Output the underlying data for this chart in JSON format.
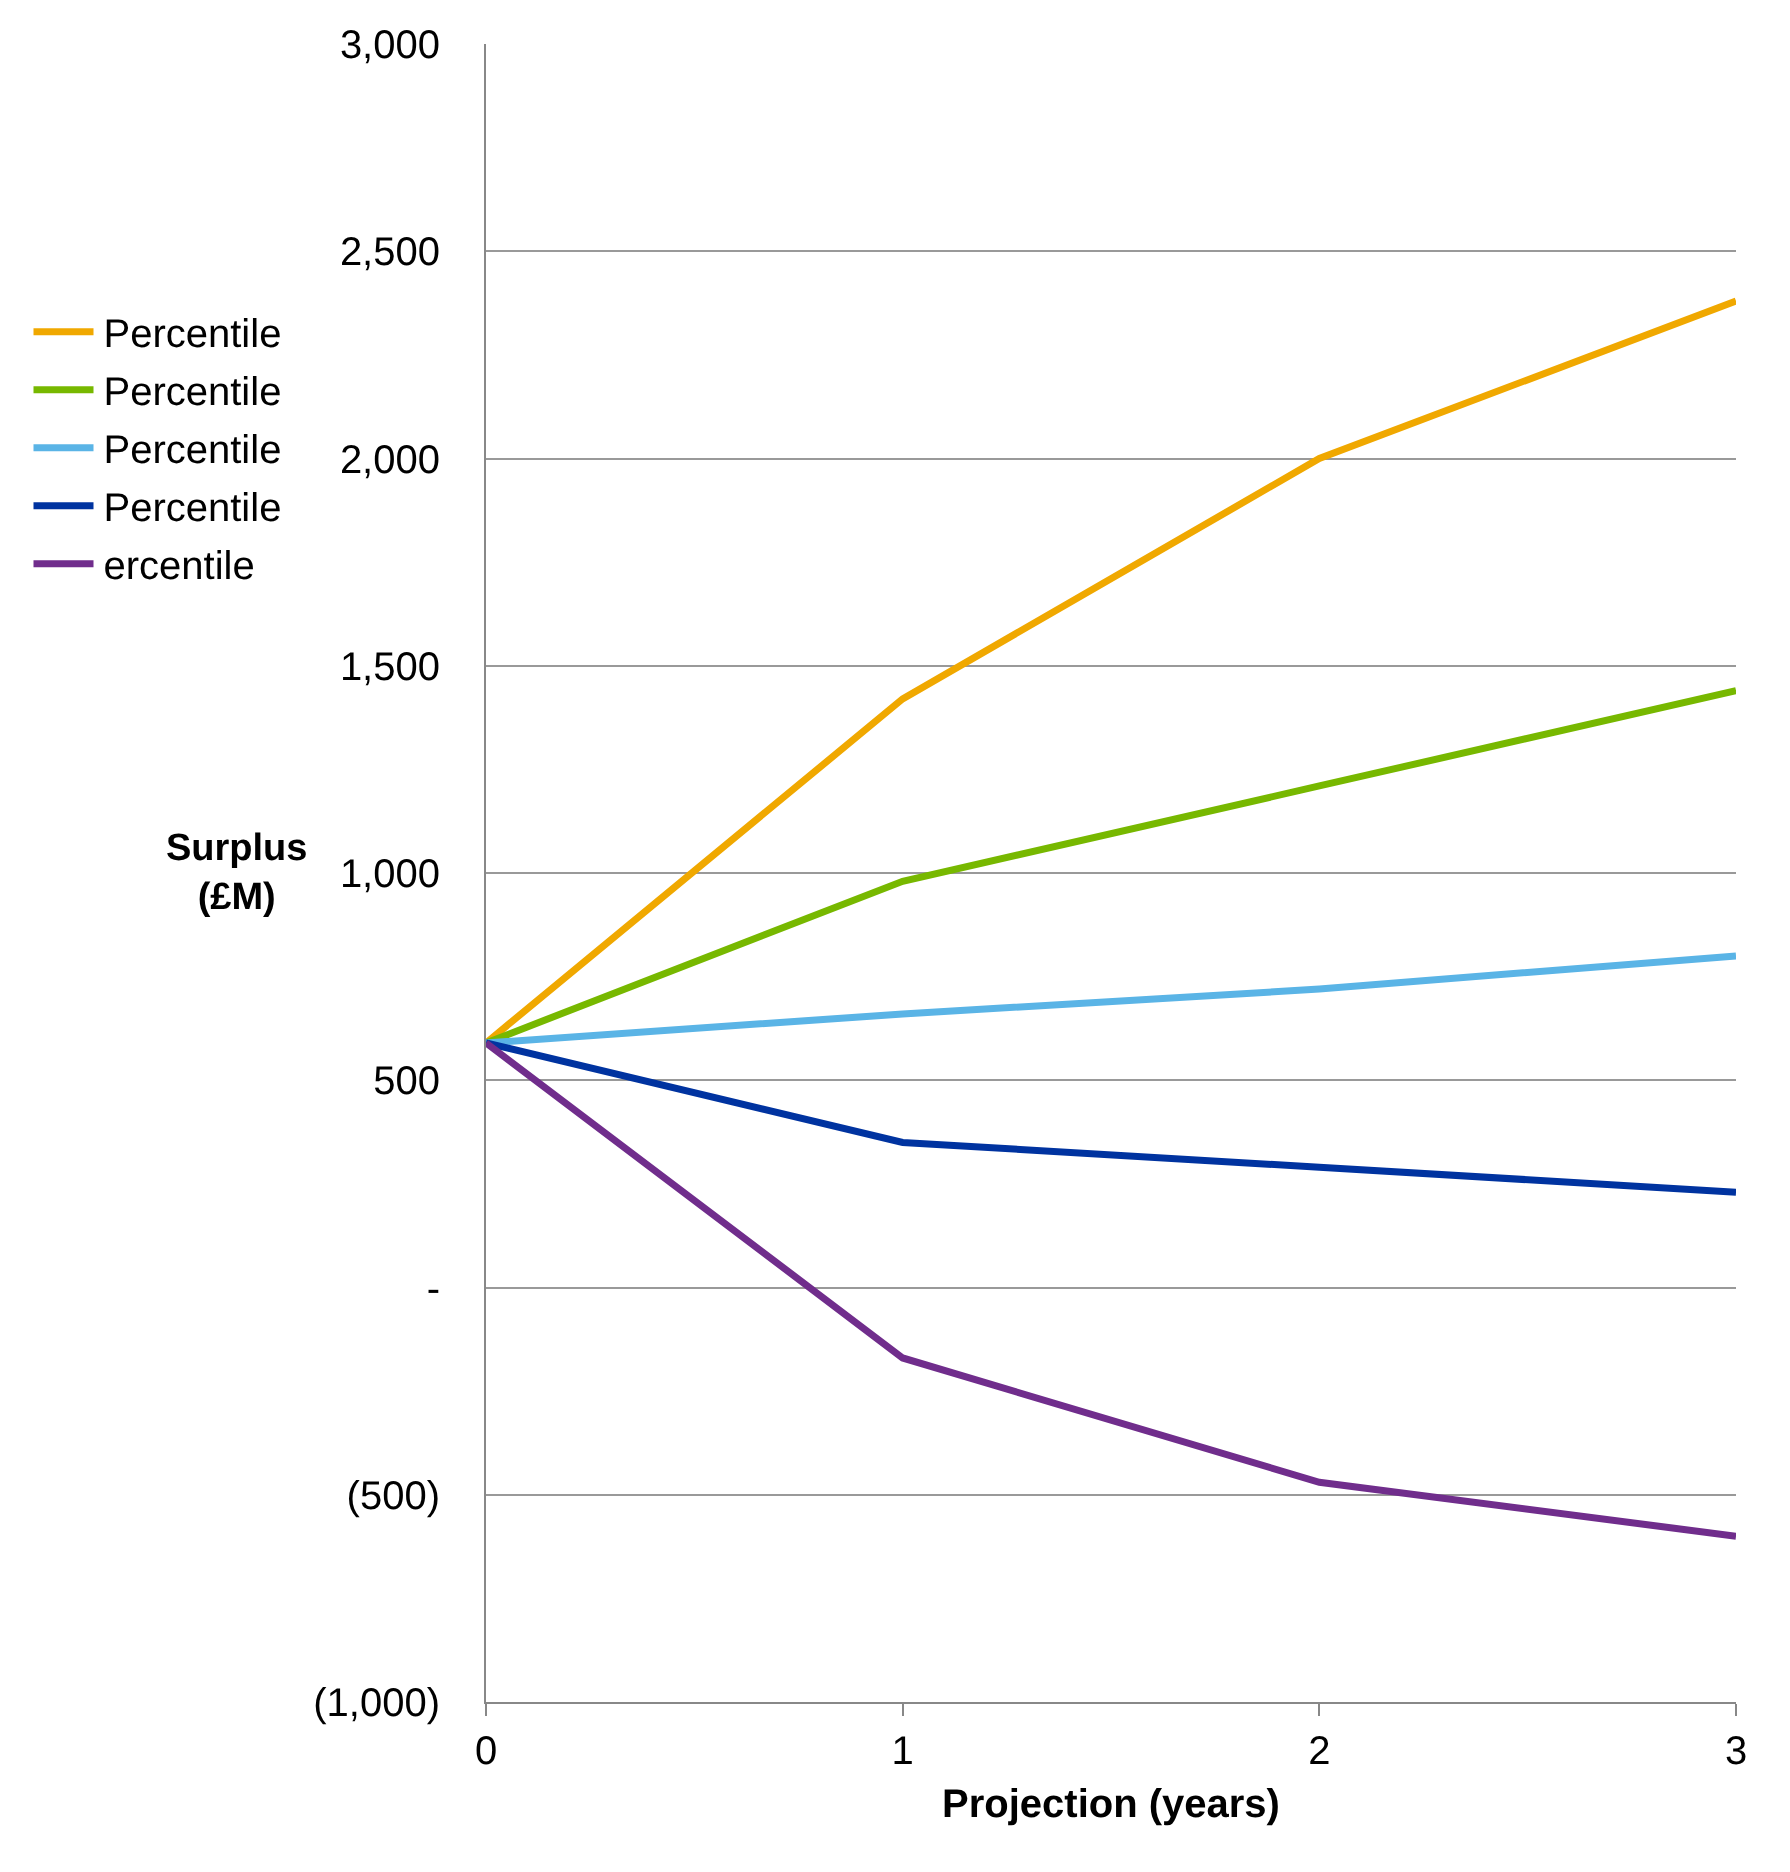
{
  "chart_data": {
    "type": "line",
    "xlabel": "Projection (years)",
    "ylabel": "Surplus\n(£M)",
    "x": [
      0,
      1,
      2,
      3
    ],
    "series": [
      {
        "name": "Percentile",
        "color": "#f0a800",
        "values": [
          590,
          1420,
          2000,
          2380
        ]
      },
      {
        "name": "Percentile",
        "color": "#77b800",
        "values": [
          590,
          980,
          1210,
          1440
        ]
      },
      {
        "name": "Percentile",
        "color": "#5ab4e6",
        "values": [
          590,
          660,
          720,
          800
        ]
      },
      {
        "name": "Percentile",
        "color": "#0033a0",
        "values": [
          590,
          350,
          290,
          230
        ]
      },
      {
        "name": "ercentile",
        "color": "#702d8c",
        "values": [
          590,
          -170,
          -470,
          -600
        ]
      }
    ],
    "xlim": [
      0,
      3
    ],
    "xticks": [
      0,
      1,
      2,
      3
    ],
    "ylim": [
      -1000,
      3000
    ],
    "yticks": [
      {
        "value": -1000,
        "label": "(1,000)"
      },
      {
        "value": -500,
        "label": "(500)"
      },
      {
        "value": 0,
        "label": "-"
      },
      {
        "value": 500,
        "label": "500"
      },
      {
        "value": 1000,
        "label": "1,000"
      },
      {
        "value": 1500,
        "label": "1,500"
      },
      {
        "value": 2000,
        "label": "2,000"
      },
      {
        "value": 2500,
        "label": "2,500"
      },
      {
        "value": 3000,
        "label": "3,000"
      }
    ],
    "grid": "y",
    "legend": "left",
    "marker": "none",
    "line_style": "solid"
  }
}
